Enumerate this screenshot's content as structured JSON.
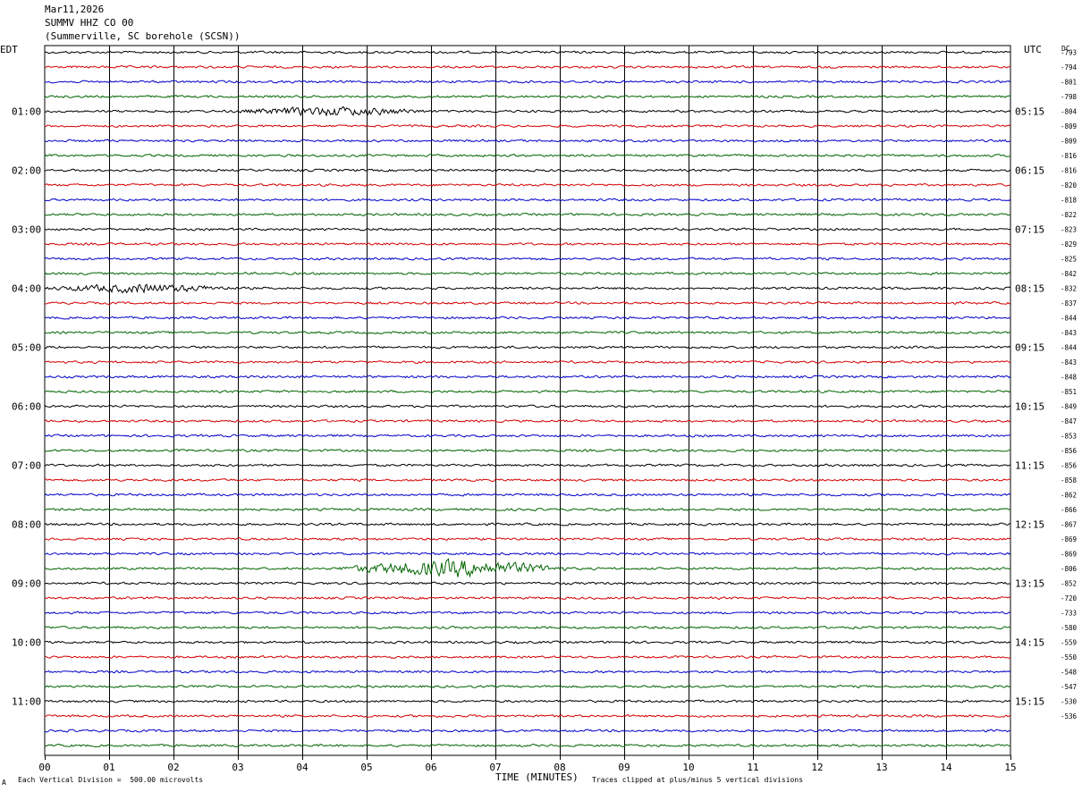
{
  "header": {
    "date": "Mar11,2026",
    "station": "SUMMV HHZ CO 00",
    "location": "(Summerville, SC borehole (SCSN))"
  },
  "left_tz": "EDT",
  "right_tz": "UTC",
  "dc_label": "DC",
  "footer": {
    "scale": "Each Vertical Division =  500.00 microvolts",
    "xlabel": "TIME (MINUTES)",
    "clip_note": "Traces clipped at plus/minus 5 vertical divisions",
    "corner_mark": "A"
  },
  "colors": {
    "trace_cycle": [
      "#000000",
      "#d40000",
      "#0000c8",
      "#006400"
    ],
    "grid": "#000000"
  },
  "chart_data": {
    "type": "line",
    "xlabel": "TIME (MINUTES)",
    "xlim": [
      0,
      15
    ],
    "x_ticks": [
      "00",
      "01",
      "02",
      "03",
      "04",
      "05",
      "06",
      "07",
      "08",
      "09",
      "10",
      "11",
      "12",
      "13",
      "14",
      "15"
    ],
    "left_hour_labels": [
      "01:00",
      "02:00",
      "03:00",
      "04:00",
      "05:00",
      "06:00",
      "07:00",
      "08:00",
      "09:00",
      "10:00",
      "11:00"
    ],
    "right_hour_labels": [
      "05:15",
      "06:15",
      "07:15",
      "08:15",
      "09:15",
      "10:15",
      "11:15",
      "12:15",
      "13:15",
      "14:15",
      "15:15"
    ],
    "rows": 48,
    "dc_offsets": [
      "-793",
      "-794",
      "-801",
      "-798",
      "-804",
      "-809",
      "-809",
      "-816",
      "-816",
      "-820",
      "-818",
      "-822",
      "-823",
      "-829",
      "-825",
      "-842",
      "-832",
      "-837",
      "-844",
      "-843",
      "-844",
      "-843",
      "-848",
      "-851",
      "-849",
      "-847",
      "-853",
      "-856",
      "-856",
      "-858",
      "-862",
      "-866",
      "-867",
      "-869",
      "-869",
      "-806",
      "-852",
      "-720",
      "-733",
      "-580",
      "-559",
      "-550",
      "-548",
      "-547",
      "-530",
      "-536"
    ],
    "events": [
      {
        "row": 4,
        "start_min": 2.9,
        "end_min": 6.0,
        "peak_min": 4.5,
        "amplitude": "high"
      },
      {
        "row": 16,
        "start_min": 0.0,
        "end_min": 3.0,
        "peak_min": 1.5,
        "amplitude": "high"
      },
      {
        "row": 35,
        "start_min": 4.5,
        "end_min": 8.2,
        "peak_min": 6.4,
        "amplitude": "very high"
      }
    ],
    "amplitude_note": "continuous background noise on all traces"
  }
}
